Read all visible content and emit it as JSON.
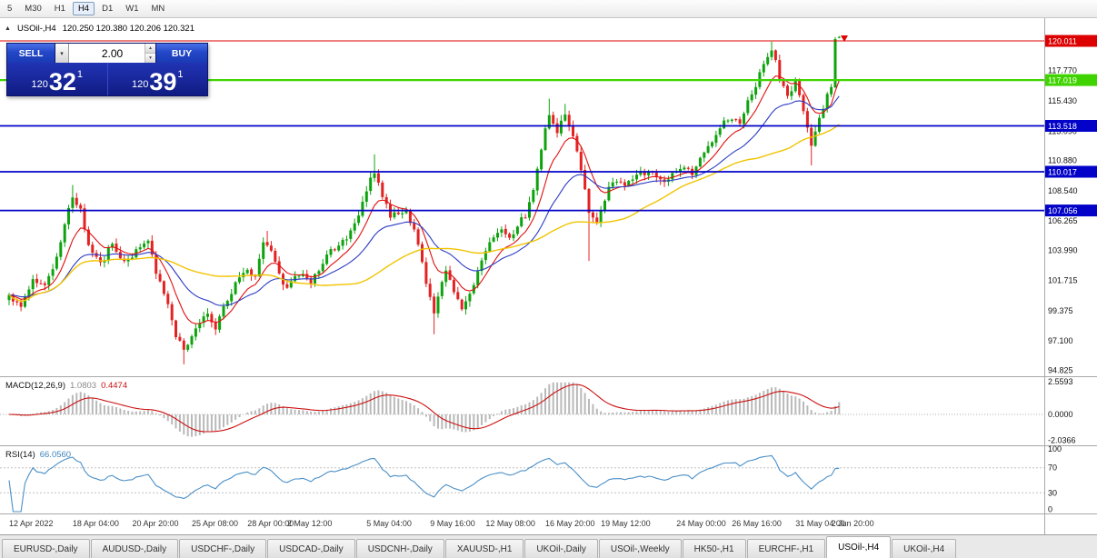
{
  "toolbar": {
    "timeframes": [
      {
        "label": "5",
        "active": false
      },
      {
        "label": "M30",
        "active": false
      },
      {
        "label": "H1",
        "active": false
      },
      {
        "label": "H4",
        "active": true
      },
      {
        "label": "D1",
        "active": false
      },
      {
        "label": "W1",
        "active": false
      },
      {
        "label": "MN",
        "active": false
      }
    ]
  },
  "chart_header": {
    "symbol": "USOil-,H4",
    "ohlc": "120.250 120.380 120.206 120.321"
  },
  "trade_panel": {
    "sell_label": "SELL",
    "buy_label": "BUY",
    "volume": "2.00",
    "bid": {
      "big_figure": "120",
      "pips": "32",
      "pipette": "1"
    },
    "ask": {
      "big_figure": "120",
      "pips": "39",
      "pipette": "1"
    }
  },
  "chart_data": {
    "type": "candlestick",
    "symbol": "USOil-",
    "timeframe": "H4",
    "bars": 210,
    "ohlc_current": {
      "open": 120.25,
      "high": 120.38,
      "low": 120.206,
      "close": 120.321
    },
    "close_anchors": [
      [
        0,
        100.6
      ],
      [
        3,
        99.6
      ],
      [
        6,
        101.9
      ],
      [
        9,
        101.2
      ],
      [
        12,
        103.4
      ],
      [
        14,
        106.2
      ],
      [
        16,
        107.8
      ],
      [
        18,
        107.1
      ],
      [
        20,
        104.3
      ],
      [
        23,
        102.9
      ],
      [
        26,
        104.6
      ],
      [
        29,
        103.1
      ],
      [
        32,
        103.9
      ],
      [
        35,
        104.7
      ],
      [
        37,
        102.4
      ],
      [
        40,
        100.1
      ],
      [
        42,
        97.6
      ],
      [
        44,
        96.2
      ],
      [
        46,
        97.4
      ],
      [
        48,
        98.7
      ],
      [
        50,
        99.2
      ],
      [
        52,
        98.2
      ],
      [
        55,
        100.4
      ],
      [
        58,
        101.9
      ],
      [
        60,
        102.4
      ],
      [
        62,
        101.9
      ],
      [
        64,
        104.5
      ],
      [
        66,
        104.1
      ],
      [
        68,
        102.2
      ],
      [
        70,
        101.0
      ],
      [
        73,
        102.3
      ],
      [
        76,
        101.6
      ],
      [
        79,
        103.2
      ],
      [
        82,
        104.2
      ],
      [
        85,
        104.9
      ],
      [
        88,
        106.5
      ],
      [
        90,
        108.7
      ],
      [
        92,
        110.1
      ],
      [
        94,
        108.3
      ],
      [
        96,
        106.6
      ],
      [
        98,
        106.8
      ],
      [
        100,
        106.9
      ],
      [
        102,
        105.4
      ],
      [
        104,
        103.0
      ],
      [
        106,
        100.3
      ],
      [
        107,
        99.0
      ],
      [
        108,
        100.3
      ],
      [
        110,
        102.5
      ],
      [
        112,
        100.8
      ],
      [
        114,
        99.5
      ],
      [
        116,
        100.7
      ],
      [
        118,
        102.3
      ],
      [
        120,
        103.9
      ],
      [
        122,
        104.9
      ],
      [
        124,
        105.6
      ],
      [
        126,
        104.9
      ],
      [
        128,
        105.9
      ],
      [
        130,
        106.7
      ],
      [
        132,
        108.4
      ],
      [
        134,
        111.8
      ],
      [
        136,
        114.5
      ],
      [
        138,
        113.2
      ],
      [
        140,
        114.3
      ],
      [
        142,
        112.6
      ],
      [
        144,
        110.2
      ],
      [
        146,
        107.0
      ],
      [
        148,
        105.9
      ],
      [
        150,
        108.0
      ],
      [
        152,
        109.3
      ],
      [
        155,
        108.9
      ],
      [
        158,
        109.6
      ],
      [
        161,
        110.1
      ],
      [
        164,
        109.2
      ],
      [
        167,
        109.9
      ],
      [
        170,
        110.4
      ],
      [
        172,
        109.8
      ],
      [
        174,
        110.9
      ],
      [
        176,
        111.8
      ],
      [
        179,
        113.5
      ],
      [
        182,
        114.2
      ],
      [
        184,
        113.8
      ],
      [
        186,
        115.3
      ],
      [
        188,
        116.7
      ],
      [
        190,
        118.3
      ],
      [
        192,
        119.4
      ],
      [
        194,
        117.3
      ],
      [
        196,
        115.8
      ],
      [
        198,
        116.8
      ],
      [
        200,
        114.5
      ],
      [
        202,
        112.0
      ],
      [
        204,
        114.2
      ],
      [
        206,
        115.9
      ],
      [
        207,
        116.5
      ],
      [
        208,
        120.15
      ],
      [
        209,
        120.32
      ]
    ],
    "extremes": [
      {
        "bar": 16,
        "high": 109.0
      },
      {
        "bar": 44,
        "low": 95.3
      },
      {
        "bar": 65,
        "high": 105.5
      },
      {
        "bar": 92,
        "high": 111.35
      },
      {
        "bar": 107,
        "low": 97.6
      },
      {
        "bar": 136,
        "high": 115.6
      },
      {
        "bar": 140,
        "high": 115.2
      },
      {
        "bar": 146,
        "low": 103.2
      },
      {
        "bar": 192,
        "high": 119.95
      },
      {
        "bar": 202,
        "low": 110.5
      }
    ],
    "price_axis": {
      "labels": [
        "117.770",
        "115.430",
        "113.090",
        "110.880",
        "108.540",
        "106.265",
        "103.990",
        "101.715",
        "99.375",
        "97.100",
        "94.825"
      ]
    },
    "hlines": [
      {
        "value": "120.011",
        "price": 120.011,
        "color": "#dd0000",
        "width": 1
      },
      {
        "value": "117.019",
        "price": 117.019,
        "color": "#3fd400",
        "width": 2.2
      },
      {
        "value": "113.518",
        "price": 113.518,
        "color": "#0202c8",
        "width": 1.8
      },
      {
        "value": "110.017",
        "price": 110.017,
        "color": "#0202c8",
        "width": 1.8
      },
      {
        "value": "107.056",
        "price": 107.056,
        "color": "#0202c8",
        "width": 1.8
      }
    ],
    "time_axis": [
      {
        "label": "12 Apr 2022",
        "bar": 0
      },
      {
        "label": "18 Apr 04:00",
        "bar": 16
      },
      {
        "label": "20 Apr 20:00",
        "bar": 31
      },
      {
        "label": "25 Apr 08:00",
        "bar": 46
      },
      {
        "label": "28 Apr 00:00",
        "bar": 60
      },
      {
        "label": "2 May 12:00",
        "bar": 70
      },
      {
        "label": "5 May 04:00",
        "bar": 90
      },
      {
        "label": "9 May 16:00",
        "bar": 106
      },
      {
        "label": "12 May 08:00",
        "bar": 120
      },
      {
        "label": "16 May 20:00",
        "bar": 135
      },
      {
        "label": "19 May 12:00",
        "bar": 149
      },
      {
        "label": "24 May 00:00",
        "bar": 168
      },
      {
        "label": "26 May 16:00",
        "bar": 182
      },
      {
        "label": "31 May 04:00",
        "bar": 198
      },
      {
        "label": "2 Jun 20:00",
        "bar": 207
      }
    ],
    "moving_averages": [
      {
        "period": 9,
        "type": "ema",
        "color": "#e01010",
        "width": 1.1
      },
      {
        "period": 24,
        "type": "ema",
        "color": "#2b3cc4",
        "width": 1.1
      },
      {
        "period": 52,
        "type": "sma",
        "color": "#f0c400",
        "width": 1.4
      }
    ],
    "candle_colors": {
      "up": "#0ea30e",
      "down": "#e32222"
    },
    "indicators": {
      "macd": {
        "label": "MACD(12,26,9)",
        "value_main": "1.0803",
        "value_signal": "0.4474",
        "axis": [
          "2.5593",
          "0.0000",
          "-2.0366"
        ],
        "histogram_color": "#b9b9b9",
        "signal_color": "#cc1111"
      },
      "rsi": {
        "label": "RSI(14)",
        "value": "66.0560",
        "axis": [
          "100",
          "70",
          "30",
          "0"
        ],
        "levels": [
          70,
          30
        ],
        "line_color": "#4a8fc7"
      }
    }
  },
  "tabs": [
    {
      "label": "EURUSD-,Daily",
      "active": false
    },
    {
      "label": "AUDUSD-,Daily",
      "active": false
    },
    {
      "label": "USDCHF-,Daily",
      "active": false
    },
    {
      "label": "USDCAD-,Daily",
      "active": false
    },
    {
      "label": "USDCNH-,Daily",
      "active": false
    },
    {
      "label": "XAUUSD-,H1",
      "active": false
    },
    {
      "label": "UKOil-,Daily",
      "active": false
    },
    {
      "label": "USOil-,Weekly",
      "active": false
    },
    {
      "label": "HK50-,H1",
      "active": false
    },
    {
      "label": "EURCHF-,H1",
      "active": false
    },
    {
      "label": "USOil-,H4",
      "active": true
    },
    {
      "label": "UKOil-,H4",
      "active": false
    }
  ]
}
